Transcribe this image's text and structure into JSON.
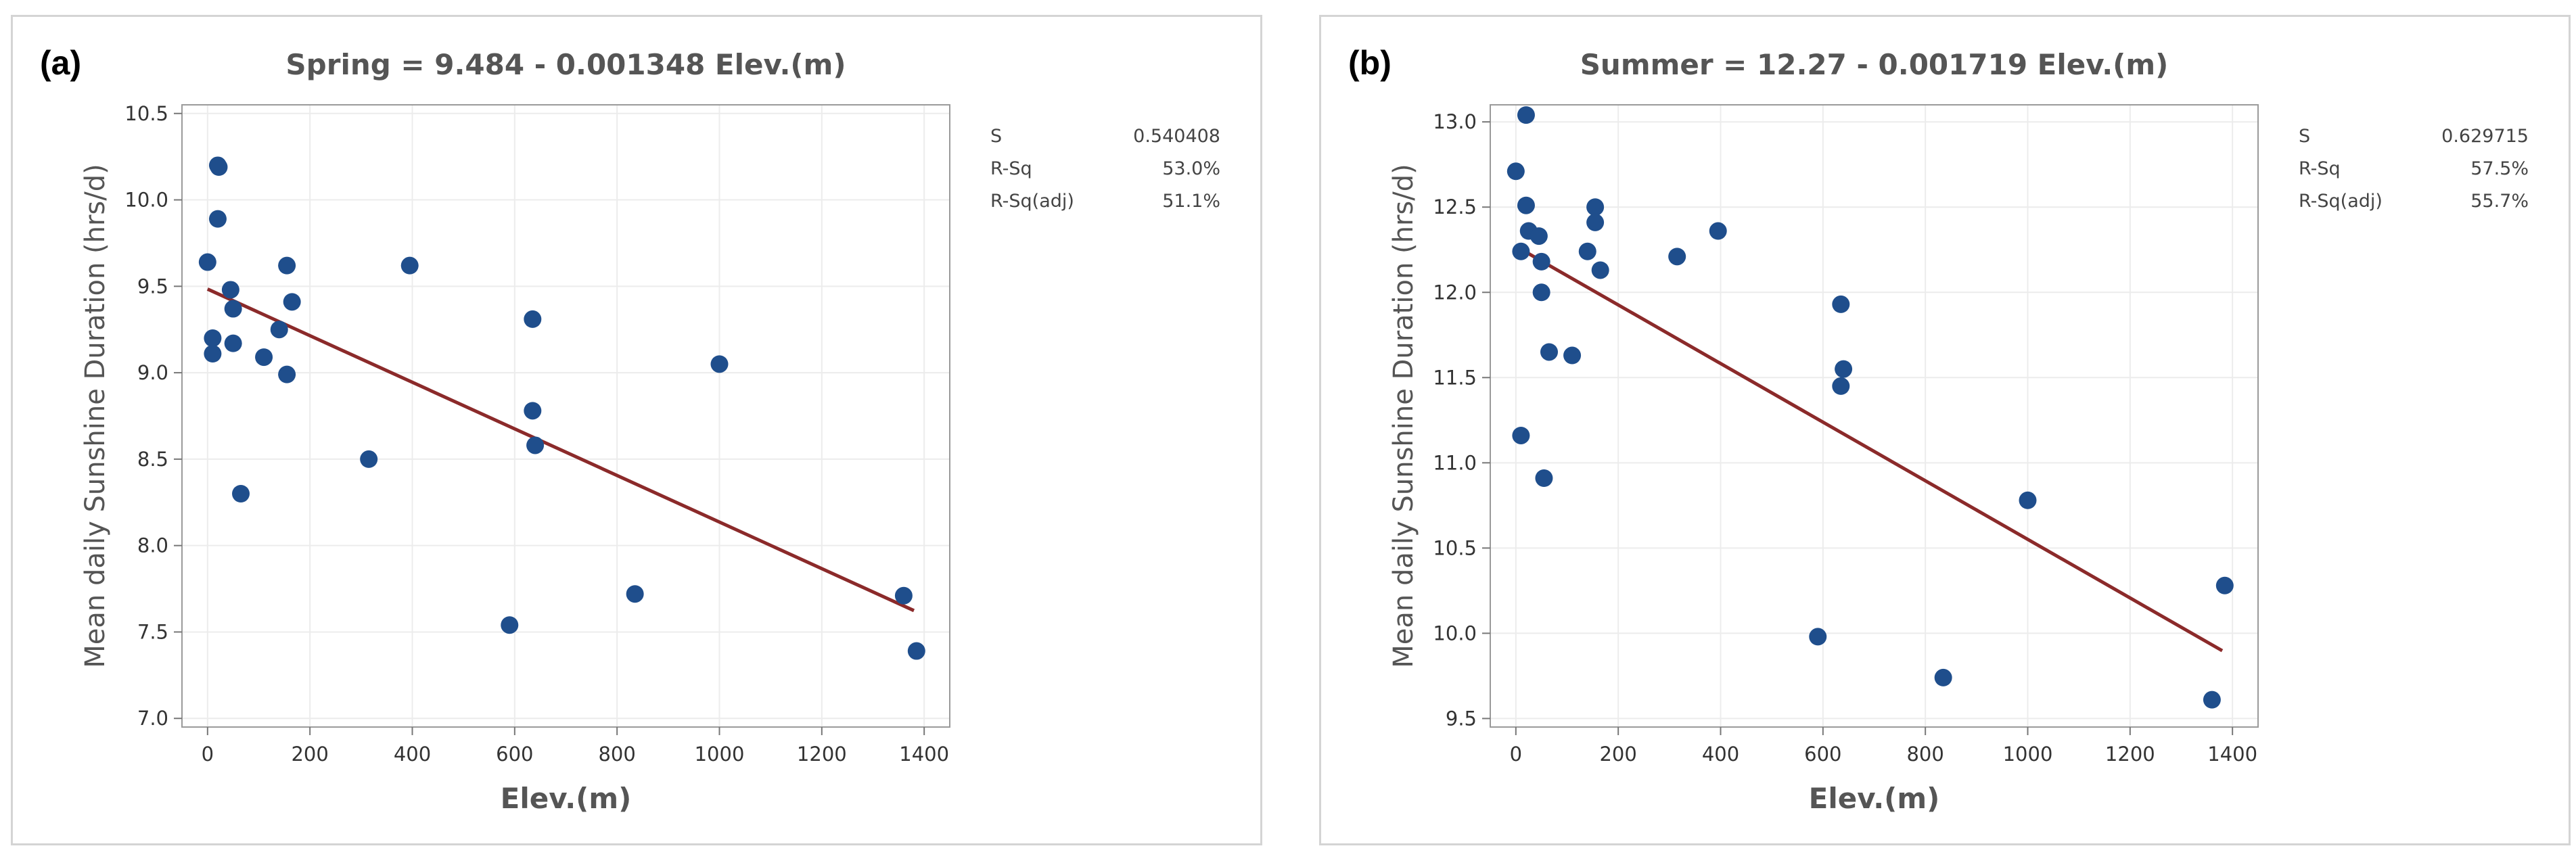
{
  "colors": {
    "point": "#1f4e8c",
    "fit_line": "#8b2a2a",
    "grid": "#ececec",
    "frame_text": "#555555"
  },
  "chart_data": [
    {
      "type": "scatter",
      "panel_label": "(a)",
      "title": "Spring = 9.484 - 0.001348 Elev.(m)",
      "xlabel": "Elev.(m)",
      "ylabel": "Mean daily Sunshine Duration (hrs/d)",
      "xlim": [
        -50,
        1450
      ],
      "ylim": [
        6.95,
        10.55
      ],
      "x_ticks": [
        0,
        200,
        400,
        600,
        800,
        1000,
        1200,
        1400
      ],
      "y_ticks": [
        7.0,
        7.5,
        8.0,
        8.5,
        9.0,
        9.5,
        10.0,
        10.5
      ],
      "x_tick_labels": [
        "0",
        "200",
        "400",
        "600",
        "800",
        "1000",
        "1200",
        "1400"
      ],
      "y_tick_labels": [
        "7.0",
        "7.5",
        "8.0",
        "8.5",
        "9.0",
        "9.5",
        "10.0",
        "10.5"
      ],
      "grid": true,
      "fit": {
        "intercept": 9.484,
        "slope": -0.001348,
        "x_range": [
          0,
          1380
        ]
      },
      "stats": [
        {
          "label": "S",
          "value": "0.540408"
        },
        {
          "label": "R-Sq",
          "value": "53.0%"
        },
        {
          "label": "R-Sq(adj)",
          "value": "51.1%"
        }
      ],
      "points": [
        {
          "x": 0,
          "y": 9.64
        },
        {
          "x": 10,
          "y": 9.2
        },
        {
          "x": 10,
          "y": 9.11
        },
        {
          "x": 20,
          "y": 10.2
        },
        {
          "x": 22,
          "y": 10.19
        },
        {
          "x": 20,
          "y": 9.89
        },
        {
          "x": 45,
          "y": 9.48
        },
        {
          "x": 50,
          "y": 9.37
        },
        {
          "x": 50,
          "y": 9.17
        },
        {
          "x": 65,
          "y": 8.3
        },
        {
          "x": 110,
          "y": 9.09
        },
        {
          "x": 140,
          "y": 9.25
        },
        {
          "x": 155,
          "y": 9.62
        },
        {
          "x": 155,
          "y": 8.99
        },
        {
          "x": 165,
          "y": 9.41
        },
        {
          "x": 315,
          "y": 8.5
        },
        {
          "x": 395,
          "y": 9.62
        },
        {
          "x": 590,
          "y": 7.54
        },
        {
          "x": 635,
          "y": 9.31
        },
        {
          "x": 635,
          "y": 8.78
        },
        {
          "x": 640,
          "y": 8.58
        },
        {
          "x": 835,
          "y": 7.72
        },
        {
          "x": 1000,
          "y": 9.05
        },
        {
          "x": 1360,
          "y": 7.71
        },
        {
          "x": 1385,
          "y": 7.39
        }
      ]
    },
    {
      "type": "scatter",
      "panel_label": "(b)",
      "title": "Summer = 12.27 - 0.001719 Elev.(m)",
      "xlabel": "Elev.(m)",
      "ylabel": "Mean daily Sunshine Duration (hrs/d)",
      "xlim": [
        -50,
        1450
      ],
      "ylim": [
        9.45,
        13.1
      ],
      "x_ticks": [
        0,
        200,
        400,
        600,
        800,
        1000,
        1200,
        1400
      ],
      "y_ticks": [
        9.5,
        10.0,
        10.5,
        11.0,
        11.5,
        12.0,
        12.5,
        13.0
      ],
      "x_tick_labels": [
        "0",
        "200",
        "400",
        "600",
        "800",
        "1000",
        "1200",
        "1400"
      ],
      "y_tick_labels": [
        "9.5",
        "10.0",
        "10.5",
        "11.0",
        "11.5",
        "12.0",
        "12.5",
        "13.0"
      ],
      "grid": true,
      "fit": {
        "intercept": 12.27,
        "slope": -0.001719,
        "x_range": [
          0,
          1380
        ]
      },
      "stats": [
        {
          "label": "S",
          "value": "0.629715"
        },
        {
          "label": "R-Sq",
          "value": "57.5%"
        },
        {
          "label": "R-Sq(adj)",
          "value": "55.7%"
        }
      ],
      "points": [
        {
          "x": 0,
          "y": 12.71
        },
        {
          "x": 10,
          "y": 12.24
        },
        {
          "x": 10,
          "y": 11.16
        },
        {
          "x": 20,
          "y": 13.04
        },
        {
          "x": 20,
          "y": 12.51
        },
        {
          "x": 25,
          "y": 12.36
        },
        {
          "x": 45,
          "y": 12.33
        },
        {
          "x": 50,
          "y": 12.18
        },
        {
          "x": 50,
          "y": 12.0
        },
        {
          "x": 55,
          "y": 10.91
        },
        {
          "x": 65,
          "y": 11.65
        },
        {
          "x": 110,
          "y": 11.63
        },
        {
          "x": 140,
          "y": 12.24
        },
        {
          "x": 155,
          "y": 12.5
        },
        {
          "x": 155,
          "y": 12.41
        },
        {
          "x": 165,
          "y": 12.13
        },
        {
          "x": 315,
          "y": 12.21
        },
        {
          "x": 395,
          "y": 12.36
        },
        {
          "x": 590,
          "y": 9.98
        },
        {
          "x": 635,
          "y": 11.93
        },
        {
          "x": 640,
          "y": 11.55
        },
        {
          "x": 635,
          "y": 11.45
        },
        {
          "x": 835,
          "y": 9.74
        },
        {
          "x": 1000,
          "y": 10.78
        },
        {
          "x": 1360,
          "y": 9.61
        },
        {
          "x": 1385,
          "y": 10.28
        }
      ]
    }
  ]
}
